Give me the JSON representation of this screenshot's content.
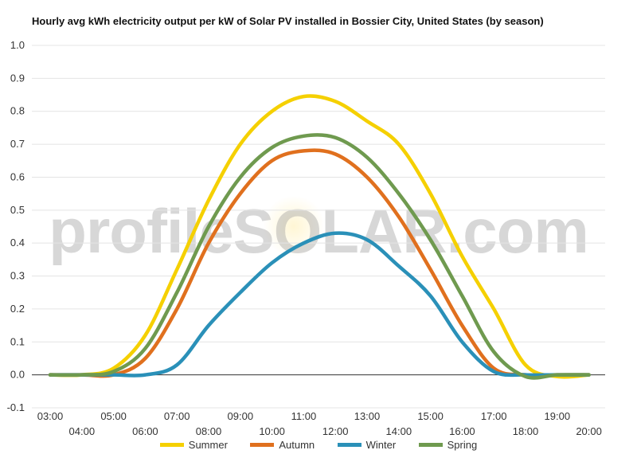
{
  "colors": {
    "summer": "#f5d000",
    "autumn": "#e0701e",
    "winter": "#2a90b8",
    "spring": "#6f9a4f",
    "grid": "#e4e4e4",
    "zero_line": "#333333",
    "axis_text": "#333333"
  },
  "watermark": {
    "text": "profileSOLAR.com",
    "logo": "sun-icon"
  },
  "chart_data": {
    "type": "line",
    "title": "Hourly avg kWh electricity output per kW of Solar PV installed in Bossier City, United States (by season)",
    "xlabel": "",
    "ylabel": "",
    "ylim": [
      -0.1,
      1.0
    ],
    "yticks": [
      "-0.1",
      "0.0",
      "0.1",
      "0.2",
      "0.3",
      "0.4",
      "0.5",
      "0.6",
      "0.7",
      "0.8",
      "0.9",
      "1.0"
    ],
    "grid": true,
    "legend_position": "bottom",
    "x": [
      "03:00",
      "04:00",
      "05:00",
      "06:00",
      "07:00",
      "08:00",
      "09:00",
      "10:00",
      "11:00",
      "12:00",
      "13:00",
      "14:00",
      "15:00",
      "16:00",
      "17:00",
      "18:00",
      "19:00",
      "20:00"
    ],
    "series": [
      {
        "name": "Summer",
        "color_key": "summer",
        "values": [
          0.0,
          0.0,
          0.02,
          0.12,
          0.32,
          0.53,
          0.7,
          0.8,
          0.845,
          0.83,
          0.77,
          0.7,
          0.55,
          0.36,
          0.2,
          0.03,
          -0.005,
          0.0
        ]
      },
      {
        "name": "Autumn",
        "color_key": "autumn",
        "values": [
          0.0,
          0.0,
          0.0,
          0.05,
          0.2,
          0.4,
          0.55,
          0.65,
          0.68,
          0.67,
          0.6,
          0.48,
          0.32,
          0.15,
          0.02,
          0.0,
          0.0,
          0.0
        ]
      },
      {
        "name": "Winter",
        "color_key": "winter",
        "values": [
          0.0,
          0.0,
          0.0,
          0.0,
          0.03,
          0.15,
          0.25,
          0.34,
          0.4,
          0.43,
          0.41,
          0.33,
          0.24,
          0.1,
          0.01,
          0.0,
          0.0,
          0.0
        ]
      },
      {
        "name": "Spring",
        "color_key": "spring",
        "values": [
          0.0,
          0.0,
          0.01,
          0.08,
          0.25,
          0.45,
          0.6,
          0.69,
          0.725,
          0.72,
          0.66,
          0.55,
          0.41,
          0.24,
          0.07,
          -0.005,
          0.0,
          0.0
        ]
      }
    ]
  }
}
